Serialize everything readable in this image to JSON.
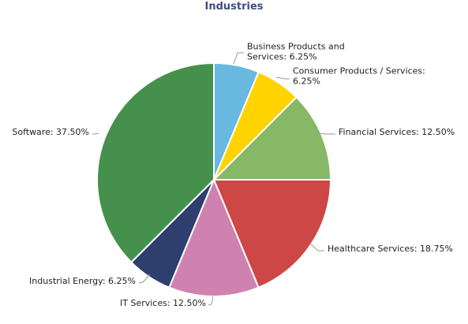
{
  "chart_data": {
    "type": "pie",
    "title": "Industries",
    "slices": [
      {
        "label": "Business Products and Services",
        "label_lines": [
          "Business Products and",
          "Services: 6.25%"
        ],
        "value": 6.25,
        "color": "#68b8df"
      },
      {
        "label": "Consumer Products / Services",
        "label_lines": [
          "Consumer Products / Services:",
          "6.25%"
        ],
        "value": 6.25,
        "color": "#ffd300"
      },
      {
        "label": "Financial Services",
        "label_lines": [
          "Financial Services: 12.50%"
        ],
        "value": 12.5,
        "color": "#87b866"
      },
      {
        "label": "Healthcare Services",
        "label_lines": [
          "Healthcare Services: 18.75%"
        ],
        "value": 18.75,
        "color": "#cc4746"
      },
      {
        "label": "IT Services",
        "label_lines": [
          "IT Services: 12.50%"
        ],
        "value": 12.5,
        "color": "#cf82b0"
      },
      {
        "label": "Industrial Energy",
        "label_lines": [
          "Industrial Energy: 6.25%"
        ],
        "value": 6.25,
        "color": "#2d3e6f"
      },
      {
        "label": "Software",
        "label_lines": [
          "Software: 37.50%"
        ],
        "value": 37.5,
        "color": "#46904d"
      }
    ]
  }
}
